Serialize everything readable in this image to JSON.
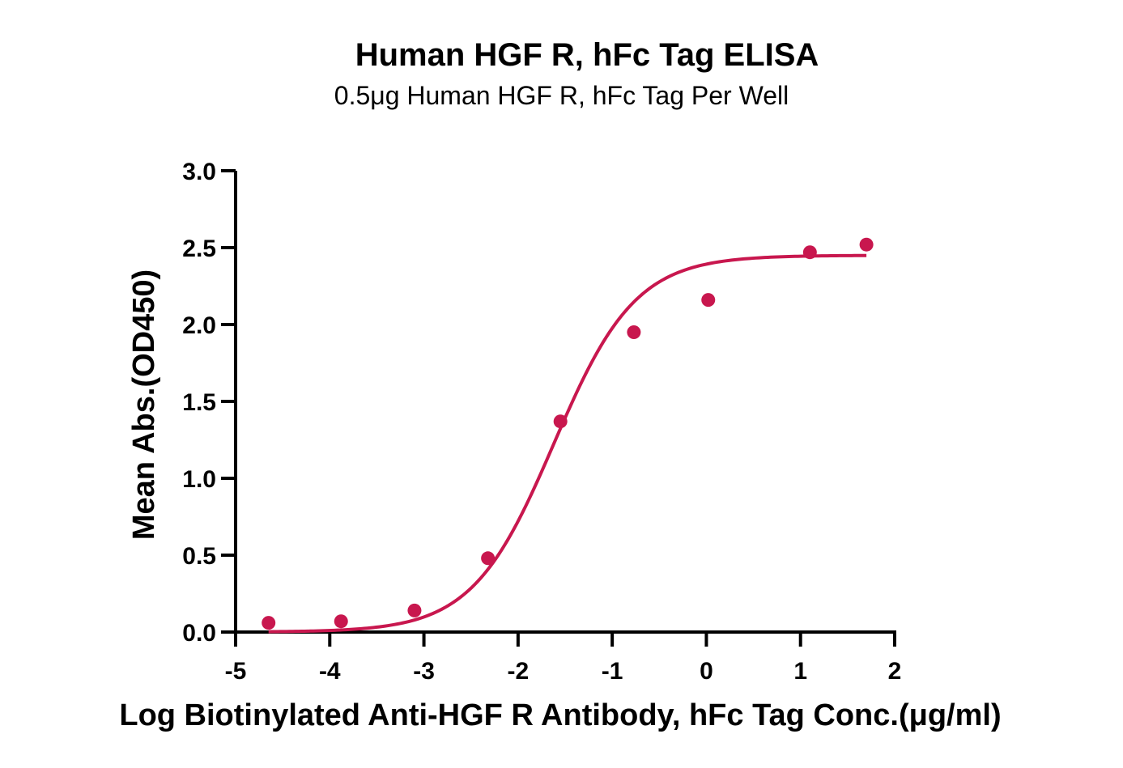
{
  "chart_data": {
    "type": "scatter",
    "title": "Human HGF R, hFc Tag ELISA",
    "subtitle": "0.5μg Human HGF R, hFc Tag Per Well",
    "xlabel": "Log Biotinylated Anti-HGF R Antibody, hFc Tag Conc.(μg/ml)",
    "ylabel": "Mean Abs.(OD450)",
    "xlim": [
      -5,
      2
    ],
    "ylim": [
      0,
      3.0
    ],
    "x_ticks": [
      "-5",
      "-4",
      "-3",
      "-2",
      "-1",
      "0",
      "1",
      "2"
    ],
    "y_ticks": [
      "0.0",
      "0.5",
      "1.0",
      "1.5",
      "2.0",
      "2.5",
      "3.0"
    ],
    "grid": false,
    "legend": "none",
    "color": "#c8174e",
    "series": [
      {
        "x": [
          -4.65,
          -3.88,
          -3.1,
          -2.32,
          -1.55,
          -0.77,
          0.02,
          1.1,
          1.7
        ],
        "y": [
          0.06,
          0.07,
          0.14,
          0.48,
          1.37,
          1.95,
          2.16,
          2.47,
          2.52
        ]
      }
    ],
    "fit_curve": {
      "model": "4PL",
      "bottom": 0.0,
      "top": 2.45,
      "log_ec50": -1.62,
      "hill_slope": 1.0,
      "x_range": [
        -4.65,
        1.7
      ]
    }
  }
}
